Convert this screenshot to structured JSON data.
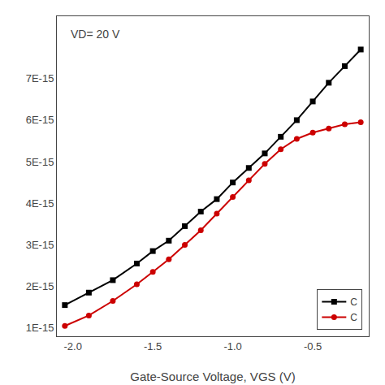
{
  "chart_data": {
    "type": "line",
    "annotation": "VD= 20 V",
    "x_label": "Gate-Source Voltage, VGS (V)",
    "xlim": [
      -2.1,
      -0.15
    ],
    "ylim": [
      8e-16,
      8.5e-15
    ],
    "xticks": [
      {
        "value": -2.0,
        "label": "-2.0"
      },
      -1.5,
      {
        "value": -1.0,
        "label": "-1.0"
      },
      -0.5
    ],
    "yticks": [
      {
        "value": 1e-15,
        "label": "1E-15"
      },
      {
        "value": 2e-15,
        "label": "2E-15"
      },
      {
        "value": 3e-15,
        "label": "3E-15"
      },
      {
        "value": 4e-15,
        "label": "4E-15"
      },
      {
        "value": 5e-15,
        "label": "5E-15"
      },
      {
        "value": 6e-15,
        "label": "6E-15"
      },
      {
        "value": 7e-15,
        "label": "7E-15"
      }
    ],
    "grid": false,
    "legend": "lower right",
    "series": [
      {
        "name": "C",
        "color": "#000000",
        "marker": "square",
        "x": [
          -2.05,
          -1.9,
          -1.75,
          -1.6,
          -1.5,
          -1.4,
          -1.3,
          -1.2,
          -1.1,
          -1.0,
          -0.9,
          -0.8,
          -0.7,
          -0.6,
          -0.5,
          -0.4,
          -0.3,
          -0.2
        ],
        "values": [
          1.55e-15,
          1.85e-15,
          2.15e-15,
          2.55e-15,
          2.85e-15,
          3.1e-15,
          3.45e-15,
          3.8e-15,
          4.1e-15,
          4.5e-15,
          4.85e-15,
          5.2e-15,
          5.6e-15,
          6e-15,
          6.45e-15,
          6.9e-15,
          7.3e-15,
          7.7e-15
        ]
      },
      {
        "name": "C",
        "color": "#cc0000",
        "marker": "circle",
        "x": [
          -2.05,
          -1.9,
          -1.75,
          -1.6,
          -1.5,
          -1.4,
          -1.3,
          -1.2,
          -1.1,
          -1.0,
          -0.9,
          -0.8,
          -0.7,
          -0.6,
          -0.5,
          -0.4,
          -0.3,
          -0.2
        ],
        "values": [
          1.05e-15,
          1.3e-15,
          1.65e-15,
          2.05e-15,
          2.35e-15,
          2.65e-15,
          3e-15,
          3.35e-15,
          3.75e-15,
          4.15e-15,
          4.55e-15,
          4.95e-15,
          5.3e-15,
          5.55e-15,
          5.7e-15,
          5.8e-15,
          5.9e-15,
          5.95e-15
        ]
      }
    ]
  }
}
